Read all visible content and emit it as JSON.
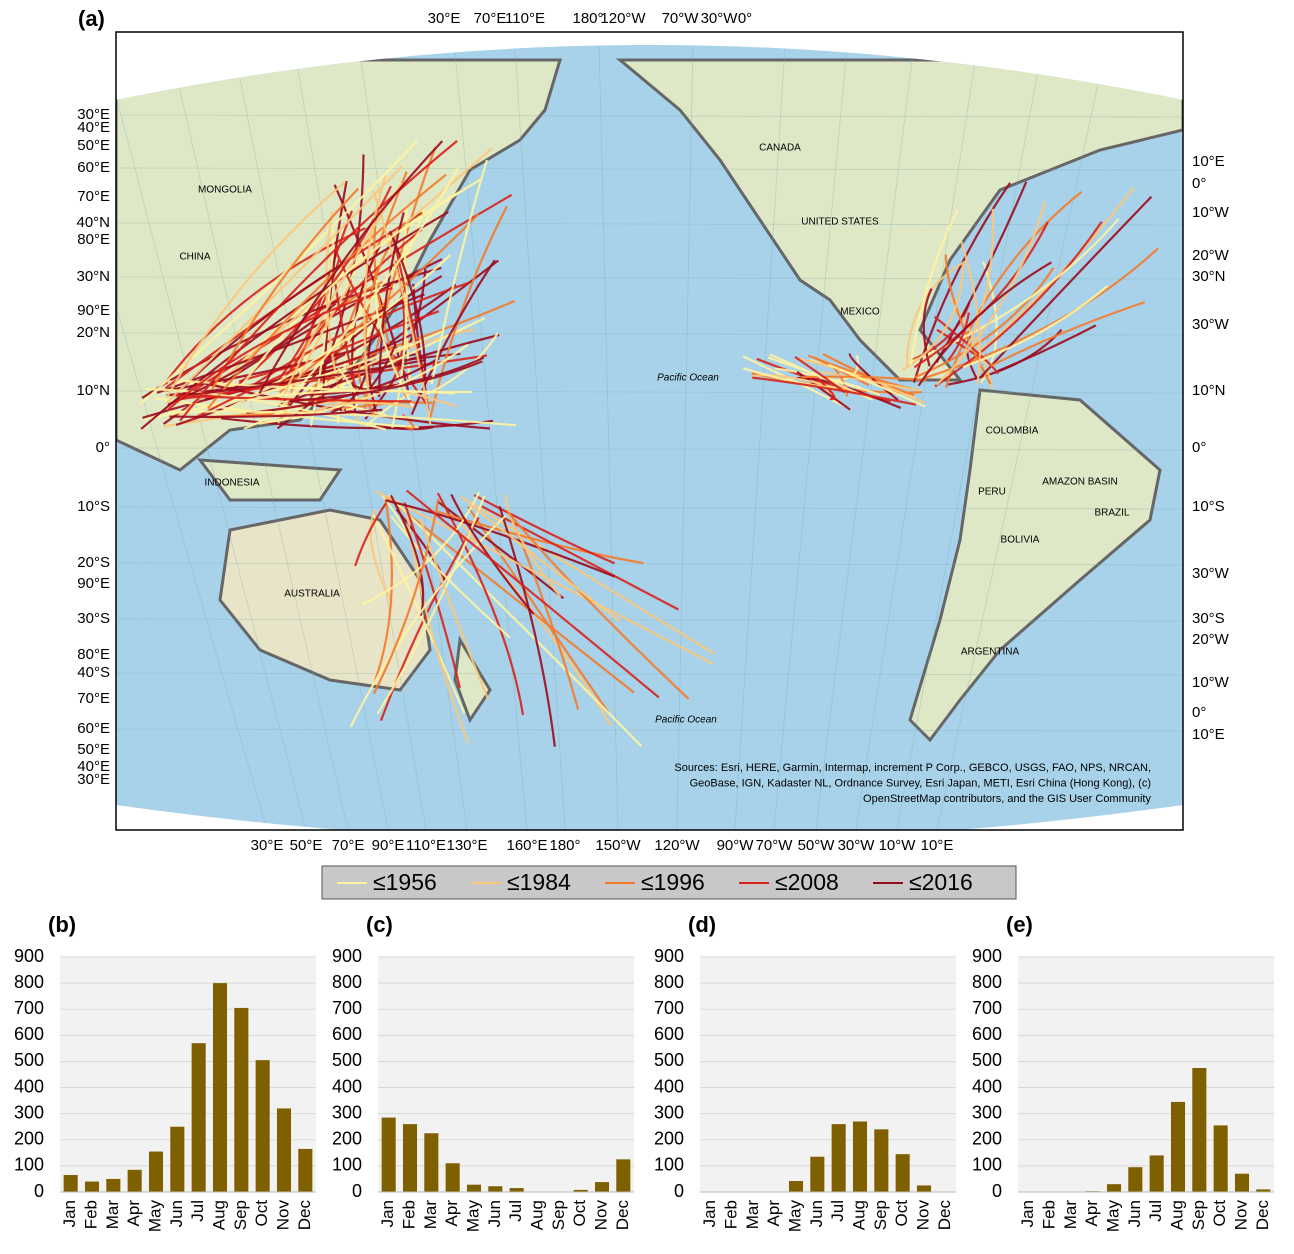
{
  "map": {
    "label": "(a)",
    "top_labels": [
      "30°E",
      "70°E",
      "110°E",
      "180°",
      "120°W",
      "70°W",
      "30°W",
      "0°"
    ],
    "bottom_labels": [
      "30°E",
      "50°E",
      "70°E",
      "90°E",
      "110°E",
      "130°E",
      "160°E",
      "180°",
      "150°W",
      "120°W",
      "90°W",
      "70°W",
      "50°W",
      "30°W",
      "10°W",
      "10°E"
    ],
    "left_labels": [
      "30°E",
      "40°E",
      "50°E",
      "60°E",
      "70°E",
      "40°N",
      "80°E",
      "30°N",
      "90°E",
      "20°N",
      "10°N",
      "0°",
      "10°S",
      "20°S",
      "90°E",
      "30°S",
      "80°E",
      "40°S",
      "70°E",
      "60°E",
      "50°E",
      "40°E",
      "30°E"
    ],
    "right_labels": [
      "10°E",
      "0°",
      "10°W",
      "20°W",
      "30°N",
      "30°W",
      "10°N",
      "0°",
      "10°S",
      "30°W",
      "30°S",
      "20°W",
      "10°W",
      "0°",
      "10°E"
    ],
    "place_labels": [
      "CHINA",
      "MONGOLIA",
      "INDONESIA",
      "AUSTRALIA",
      "CANADA",
      "UNITED STATES",
      "MEXICO",
      "COLOMBIA",
      "PERU",
      "BOLIVIA",
      "AMAZON BASIN",
      "BRAZIL",
      "ARGENTINA",
      "Pacific Ocean",
      "Pacific Ocean"
    ],
    "attribution": [
      "Sources: Esri, HERE, Garmin, Intermap, increment P Corp., GEBCO, USGS, FAO, NPS, NRCAN,",
      "GeoBase, IGN, Kadaster NL, Ordnance Survey, Esri Japan, METI, Esri China (Hong Kong), (c)",
      "OpenStreetMap contributors, and the GIS User Community"
    ],
    "legend": [
      {
        "name": "≤1956",
        "color": "#fff3a0"
      },
      {
        "name": "≤1984",
        "color": "#fbc77a"
      },
      {
        "name": "≤1996",
        "color": "#f47a2a"
      },
      {
        "name": "≤2008",
        "color": "#d8221b"
      },
      {
        "name": "≤2016",
        "color": "#9c0a1e"
      }
    ]
  },
  "chart_data": [
    {
      "type": "bar",
      "label": "(b)",
      "categories": [
        "Jan",
        "Feb",
        "Mar",
        "Apr",
        "May",
        "Jun",
        "Jul",
        "Aug",
        "Sep",
        "Oct",
        "Nov",
        "Dec"
      ],
      "values": [
        65,
        40,
        50,
        85,
        155,
        250,
        570,
        800,
        705,
        505,
        320,
        165
      ],
      "color": "#7f6000",
      "ylim": [
        0,
        900
      ],
      "yticks": [
        0,
        100,
        200,
        300,
        400,
        500,
        600,
        700,
        800,
        900
      ],
      "grid": true
    },
    {
      "type": "bar",
      "label": "(c)",
      "categories": [
        "Jan",
        "Feb",
        "Mar",
        "Apr",
        "May",
        "Jun",
        "Jul",
        "Aug",
        "Sep",
        "Oct",
        "Nov",
        "Dec"
      ],
      "values": [
        285,
        260,
        225,
        110,
        28,
        22,
        15,
        0,
        0,
        8,
        38,
        125
      ],
      "color": "#7f6000",
      "ylim": [
        0,
        900
      ],
      "yticks": [
        0,
        100,
        200,
        300,
        400,
        500,
        600,
        700,
        800,
        900
      ],
      "grid": true
    },
    {
      "type": "bar",
      "label": "(d)",
      "categories": [
        "Jan",
        "Feb",
        "Mar",
        "Apr",
        "May",
        "Jun",
        "Jul",
        "Aug",
        "Sep",
        "Oct",
        "Nov",
        "Dec"
      ],
      "values": [
        0,
        0,
        0,
        0,
        42,
        135,
        260,
        270,
        240,
        145,
        25,
        0
      ],
      "color": "#7f6000",
      "ylim": [
        0,
        900
      ],
      "yticks": [
        0,
        100,
        200,
        300,
        400,
        500,
        600,
        700,
        800,
        900
      ],
      "grid": true
    },
    {
      "type": "bar",
      "label": "(e)",
      "categories": [
        "Jan",
        "Feb",
        "Mar",
        "Apr",
        "May",
        "Jun",
        "Jul",
        "Aug",
        "Sep",
        "Oct",
        "Nov",
        "Dec"
      ],
      "values": [
        0,
        0,
        0,
        3,
        30,
        95,
        140,
        345,
        475,
        255,
        70,
        10
      ],
      "color": "#7f6000",
      "ylim": [
        0,
        900
      ],
      "yticks": [
        0,
        100,
        200,
        300,
        400,
        500,
        600,
        700,
        800,
        900
      ],
      "grid": true
    }
  ]
}
